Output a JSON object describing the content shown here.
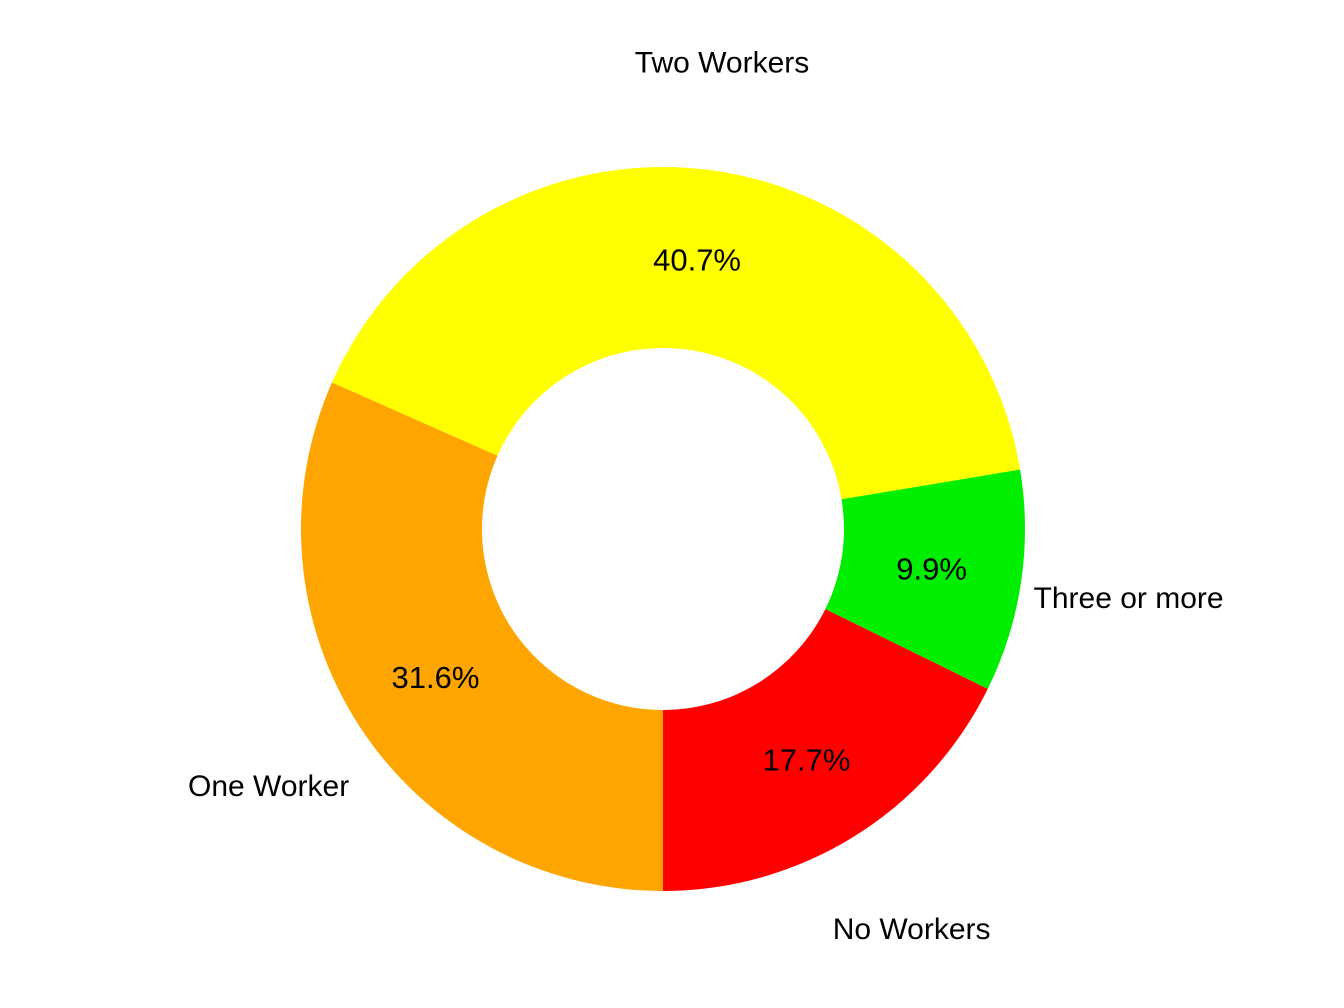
{
  "chart_data": {
    "type": "pie",
    "variant": "donut",
    "title": "",
    "background": "#FFFFFF",
    "text_color": "#000000",
    "start_angle_deg": 270,
    "direction": "counterclockwise",
    "donut_hole_ratio": 0.5,
    "legend_position": "none",
    "labels_outside": true,
    "segments": [
      {
        "label": "No Workers",
        "value": 17.7,
        "pct_label": "17.7%",
        "color": "#FF0000"
      },
      {
        "label": "Three or more",
        "value": 9.9,
        "pct_label": "9.9%",
        "color": "#00EE00"
      },
      {
        "label": "Two Workers",
        "value": 40.7,
        "pct_label": "40.7%",
        "color": "#FFFF00"
      },
      {
        "label": "One Worker",
        "value": 31.6,
        "pct_label": "31.6%",
        "color": "#FFA500"
      }
    ]
  }
}
